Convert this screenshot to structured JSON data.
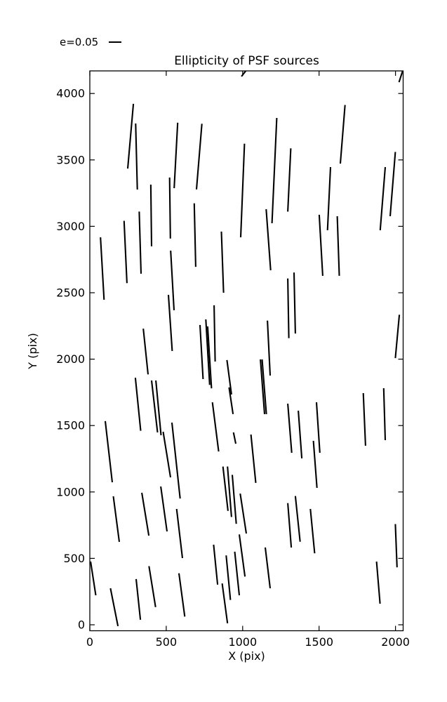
{
  "figure": {
    "title": "Ellipticity of PSF sources",
    "xlabel": "X (pix)",
    "ylabel": "Y (pix)",
    "legend_label": "e=0.05",
    "line_color": "#000000",
    "background": "#ffffff"
  },
  "chart_data": {
    "type": "line-segments",
    "title": "Ellipticity of PSF sources",
    "xlabel": "X (pix)",
    "ylabel": "Y (pix)",
    "legend": {
      "label": "e=0.05",
      "position": "upper-left-outside"
    },
    "xlim": [
      0,
      2050
    ],
    "ylim": [
      -45,
      4170
    ],
    "xticks": [
      0,
      500,
      1000,
      1500,
      2000
    ],
    "yticks": [
      0,
      500,
      1000,
      1500,
      2000,
      2500,
      3000,
      3500,
      4000
    ],
    "grid": false,
    "segments": [
      [
        248,
        3435,
        285,
        3922
      ],
      [
        300,
        3774,
        311,
        3277
      ],
      [
        399,
        3314,
        404,
        2849
      ],
      [
        522,
        3367,
        527,
        2908
      ],
      [
        552,
        3287,
        575,
        3780
      ],
      [
        698,
        3278,
        733,
        3772
      ],
      [
        987,
        2917,
        1012,
        3622
      ],
      [
        70,
        2917,
        93,
        2447
      ],
      [
        224,
        3041,
        243,
        2572
      ],
      [
        323,
        3111,
        335,
        2643
      ],
      [
        683,
        3173,
        693,
        2695
      ],
      [
        861,
        2960,
        875,
        2500
      ],
      [
        992,
        4128,
        1028,
        4181
      ],
      [
        2023,
        4085,
        2048,
        4175
      ],
      [
        1192,
        3023,
        1223,
        3816
      ],
      [
        1295,
        3111,
        1315,
        3587
      ],
      [
        1639,
        3472,
        1670,
        3913
      ],
      [
        1555,
        2970,
        1575,
        3446
      ],
      [
        1900,
        2970,
        1933,
        3446
      ],
      [
        1965,
        3076,
        1999,
        3560
      ],
      [
        1154,
        3129,
        1183,
        2669
      ],
      [
        1501,
        3087,
        1524,
        2627
      ],
      [
        1619,
        3076,
        1632,
        2627
      ],
      [
        529,
        2817,
        551,
        2368
      ],
      [
        514,
        2484,
        539,
        2061
      ],
      [
        350,
        2229,
        381,
        1885
      ],
      [
        298,
        1860,
        333,
        1461
      ],
      [
        404,
        1839,
        443,
        1448
      ],
      [
        432,
        1839,
        466,
        1427
      ],
      [
        721,
        2257,
        741,
        1850
      ],
      [
        759,
        2299,
        784,
        1806
      ],
      [
        771,
        2246,
        796,
        1780
      ],
      [
        813,
        2405,
        820,
        1982
      ],
      [
        897,
        1993,
        927,
        1734
      ],
      [
        911,
        1787,
        937,
        1586
      ],
      [
        802,
        1675,
        843,
        1305
      ],
      [
        1295,
        2607,
        1302,
        2158
      ],
      [
        1336,
        2652,
        1345,
        2193
      ],
      [
        1162,
        2290,
        1180,
        1876
      ],
      [
        1116,
        1998,
        1143,
        1586
      ],
      [
        1127,
        1998,
        1155,
        1586
      ],
      [
        1999,
        2008,
        2025,
        2334
      ],
      [
        1789,
        1744,
        1804,
        1348
      ],
      [
        1923,
        1781,
        1933,
        1390
      ],
      [
        101,
        1533,
        147,
        1073
      ],
      [
        940,
        1448,
        955,
        1363
      ],
      [
        871,
        1191,
        904,
        857
      ],
      [
        901,
        1191,
        927,
        812
      ],
      [
        932,
        1129,
        958,
        760
      ],
      [
        984,
        988,
        1024,
        687
      ],
      [
        978,
        680,
        1015,
        363
      ],
      [
        948,
        550,
        978,
        222
      ],
      [
        892,
        522,
        920,
        187
      ],
      [
        866,
        311,
        901,
        11
      ],
      [
        1054,
        1432,
        1086,
        1068
      ],
      [
        1295,
        1665,
        1321,
        1295
      ],
      [
        1364,
        1612,
        1387,
        1253
      ],
      [
        1463,
        1385,
        1486,
        1031
      ],
      [
        1483,
        1675,
        1505,
        1295
      ],
      [
        810,
        603,
        836,
        302
      ],
      [
        154,
        967,
        193,
        624
      ],
      [
        340,
        994,
        386,
        671
      ],
      [
        464,
        1041,
        505,
        703
      ],
      [
        480,
        1453,
        528,
        1110
      ],
      [
        537,
        1522,
        591,
        951
      ],
      [
        568,
        872,
        606,
        502
      ],
      [
        583,
        388,
        621,
        62
      ],
      [
        303,
        344,
        331,
        38
      ],
      [
        387,
        441,
        430,
        133
      ],
      [
        135,
        275,
        184,
        -10
      ],
      [
        5,
        476,
        39,
        222
      ],
      [
        1148,
        582,
        1180,
        275
      ],
      [
        1295,
        916,
        1318,
        582
      ],
      [
        1345,
        969,
        1376,
        625
      ],
      [
        1443,
        872,
        1471,
        538
      ],
      [
        1876,
        476,
        1899,
        159
      ],
      [
        1999,
        758,
        2010,
        432
      ]
    ]
  }
}
